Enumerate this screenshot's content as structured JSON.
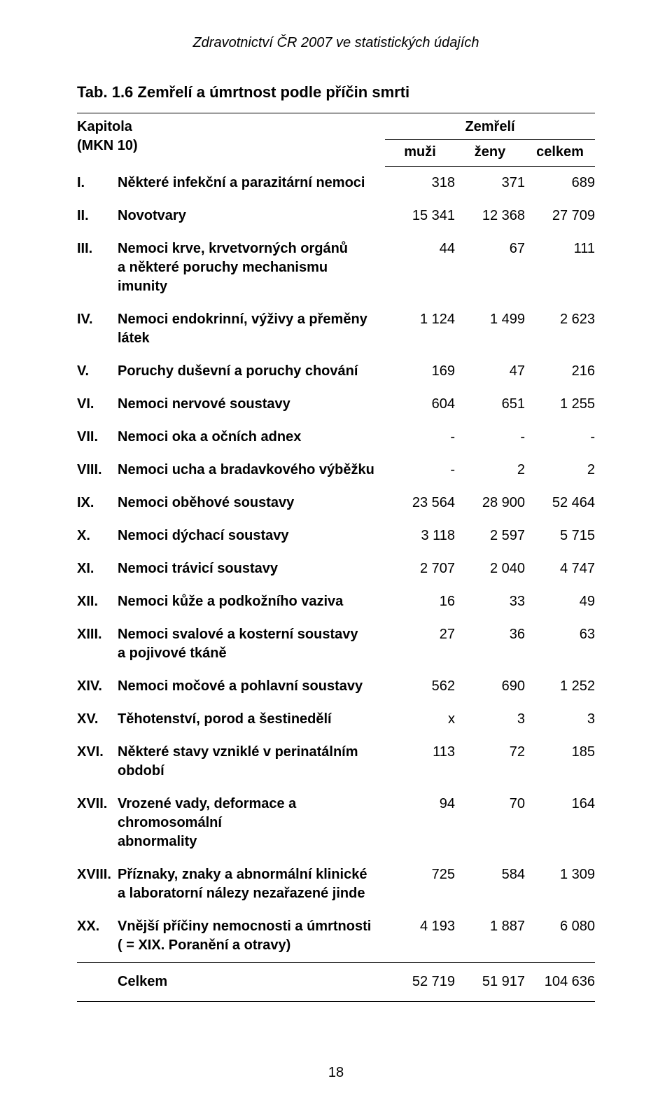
{
  "running_title": "Zdravotnictví ČR 2007 ve statistických údajích",
  "table_title": "Tab. 1.6  Zemřelí a úmrtnost podle příčin smrti",
  "header": {
    "kapitola": "Kapitola",
    "mkn": "(MKN 10)",
    "zemreli": "Zemřelí",
    "muzi": "muži",
    "zeny": "ženy",
    "celkem": "celkem"
  },
  "rows": [
    {
      "rn": "I.",
      "name": "Některé infekční a parazitární nemoci",
      "m": "318",
      "z": "371",
      "c": "689"
    },
    {
      "rn": "II.",
      "name": "Novotvary",
      "m": "15 341",
      "z": "12 368",
      "c": "27 709"
    },
    {
      "rn": "III.",
      "name": "Nemoci krve, krvetvorných orgánů\na některé poruchy mechanismu imunity",
      "m": "44",
      "z": "67",
      "c": "111"
    },
    {
      "rn": "IV.",
      "name": "Nemoci endokrinní, výživy a přeměny látek",
      "m": "1 124",
      "z": "1 499",
      "c": "2 623"
    },
    {
      "rn": "V.",
      "name": "Poruchy duševní a poruchy chování",
      "m": "169",
      "z": "47",
      "c": "216"
    },
    {
      "rn": "VI.",
      "name": "Nemoci nervové soustavy",
      "m": "604",
      "z": "651",
      "c": "1 255"
    },
    {
      "rn": "VII.",
      "name": "Nemoci oka a očních adnex",
      "m": "-",
      "z": "-",
      "c": "-"
    },
    {
      "rn": "VIII.",
      "name": "Nemoci ucha a bradavkového výběžku",
      "m": "-",
      "z": "2",
      "c": "2"
    },
    {
      "rn": "IX.",
      "name": "Nemoci oběhové soustavy",
      "m": "23 564",
      "z": "28 900",
      "c": "52 464"
    },
    {
      "rn": "X.",
      "name": "Nemoci dýchací soustavy",
      "m": "3 118",
      "z": "2 597",
      "c": "5 715"
    },
    {
      "rn": "XI.",
      "name": "Nemoci trávicí soustavy",
      "m": "2 707",
      "z": "2 040",
      "c": "4 747"
    },
    {
      "rn": "XII.",
      "name": "Nemoci kůže a podkožního vaziva",
      "m": "16",
      "z": "33",
      "c": "49"
    },
    {
      "rn": "XIII.",
      "name": "Nemoci svalové a kosterní soustavy\na pojivové tkáně",
      "m": "27",
      "z": "36",
      "c": "63"
    },
    {
      "rn": "XIV.",
      "name": "Nemoci močové a pohlavní soustavy",
      "m": "562",
      "z": "690",
      "c": "1 252"
    },
    {
      "rn": "XV.",
      "name": "Těhotenství, porod a šestinedělí",
      "m": "x",
      "z": "3",
      "c": "3"
    },
    {
      "rn": "XVI.",
      "name": "Některé stavy vzniklé v perinatálním období",
      "m": "113",
      "z": "72",
      "c": "185"
    },
    {
      "rn": "XVII.",
      "name": "Vrozené vady, deformace a chromosomální\nabnormality",
      "m": "94",
      "z": "70",
      "c": "164"
    },
    {
      "rn": "XVIII.",
      "name": "Příznaky, znaky a abnormální klinické\na laboratorní nálezy nezařazené jinde",
      "m": "725",
      "z": "584",
      "c": "1 309"
    },
    {
      "rn": "XX.",
      "name": "Vnější příčiny nemocnosti a úmrtnosti\n( = XIX. Poranění a otravy)",
      "m": "4 193",
      "z": "1 887",
      "c": "6 080"
    }
  ],
  "totals": {
    "label": "Celkem",
    "m": "52 719",
    "z": "51 917",
    "c": "104 636"
  },
  "page_number": "18"
}
